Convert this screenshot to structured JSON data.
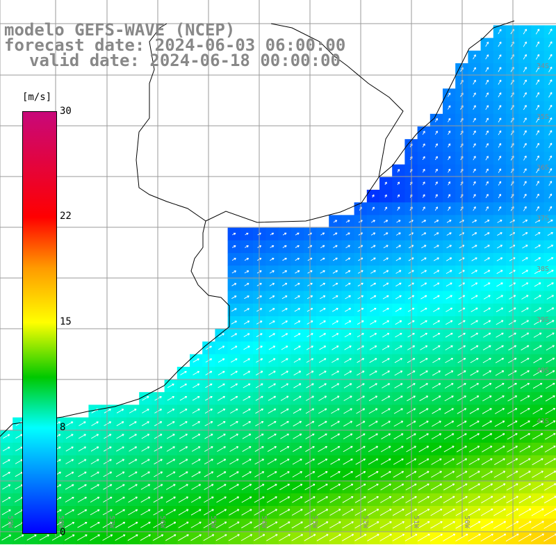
{
  "header": {
    "line1": "modelo GEFS-WAVE (NCEP)",
    "line2": "forecast date: 2024-06-03 06:00:00",
    "line3": "valid date: 2024-06-18 00:00:00"
  },
  "colorbar": {
    "unit": "[m/s]",
    "ticks": [
      {
        "label": "30",
        "value": 30
      },
      {
        "label": "22",
        "value": 22
      },
      {
        "label": "15",
        "value": 15
      },
      {
        "label": "8",
        "value": 8
      },
      {
        "label": "0",
        "value": 0
      }
    ],
    "colors": [
      "#c8087a",
      "#ff0000",
      "#ff9a00",
      "#ffff00",
      "#00c800",
      "#00ffff",
      "#0000ff"
    ]
  },
  "map": {
    "lat_labels": [
      "34S",
      "35S",
      "36S",
      "37S",
      "38S",
      "39S",
      "40S",
      "41S"
    ],
    "lon_labels": [
      "59W",
      "58W",
      "57W",
      "56W",
      "55W",
      "54W",
      "53W",
      "52W",
      "51W",
      "50W"
    ],
    "colors": {
      "land": "#ffffff",
      "coast": "#000000",
      "grid": "#9a9a9a",
      "arrow": "#ffffff"
    }
  }
}
